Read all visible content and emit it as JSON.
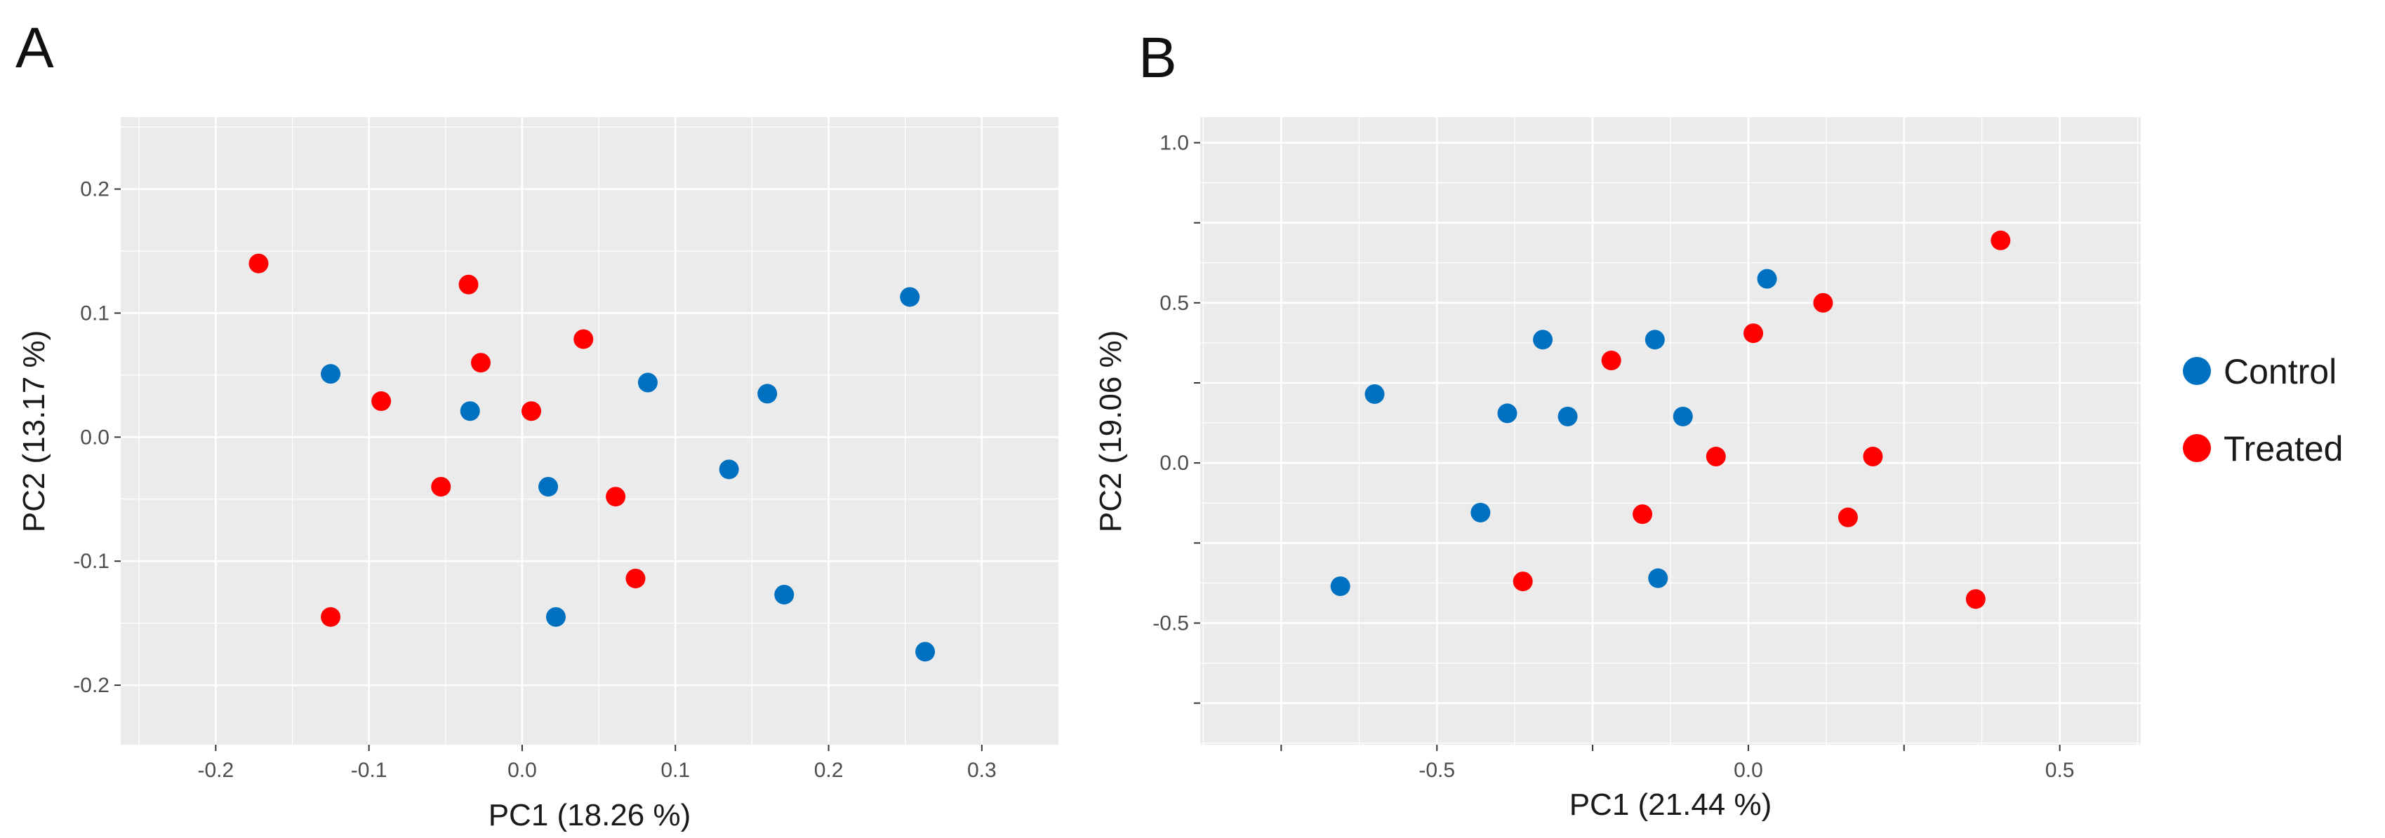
{
  "colors": {
    "panel_bg": "#EBEBEB",
    "grid": "#FFFFFF",
    "tick": "#333333",
    "control": "#0070C0",
    "treated": "#FF0000"
  },
  "legend": {
    "position": "right",
    "entries": [
      {
        "name": "Control",
        "color": "#0070C0"
      },
      {
        "name": "Treated",
        "color": "#FF0000"
      }
    ]
  },
  "chart_data": [
    {
      "panel_label": "A",
      "type": "scatter",
      "xlabel": "PC1 (18.26 %)",
      "ylabel": "PC2 (13.17 %)",
      "xlim": [
        -0.262,
        0.35
      ],
      "ylim": [
        -0.248,
        0.258
      ],
      "xticks": [
        -0.2,
        -0.1,
        0.0,
        0.1,
        0.2,
        0.3
      ],
      "xtick_labels": [
        "-0.2",
        "-0.1",
        "0.0",
        "0.1",
        "0.2",
        "0.3"
      ],
      "yticks": [
        -0.2,
        -0.1,
        0.0,
        0.1,
        0.2
      ],
      "ytick_labels": [
        "-0.2",
        "-0.1",
        "0.0",
        "0.1",
        "0.2"
      ],
      "xminor": [
        -0.25,
        -0.15,
        -0.05,
        0.05,
        0.15,
        0.25,
        0.35
      ],
      "yminor": [
        -0.15,
        -0.05,
        0.05,
        0.15,
        0.25
      ],
      "grid": true,
      "series": [
        {
          "name": "Control",
          "color": "#0070C0",
          "points": [
            [
              -0.125,
              0.051
            ],
            [
              -0.034,
              0.021
            ],
            [
              0.017,
              -0.04
            ],
            [
              0.022,
              -0.145
            ],
            [
              0.082,
              0.044
            ],
            [
              0.135,
              -0.026
            ],
            [
              0.16,
              0.035
            ],
            [
              0.171,
              -0.127
            ],
            [
              0.253,
              0.113
            ],
            [
              0.263,
              -0.173
            ]
          ]
        },
        {
          "name": "Treated",
          "color": "#FF0000",
          "points": [
            [
              -0.172,
              0.14
            ],
            [
              -0.125,
              -0.145
            ],
            [
              -0.092,
              0.029
            ],
            [
              -0.053,
              -0.04
            ],
            [
              -0.035,
              0.123
            ],
            [
              -0.027,
              0.06
            ],
            [
              0.006,
              0.021
            ],
            [
              0.04,
              0.079
            ],
            [
              0.061,
              -0.048
            ],
            [
              0.074,
              -0.114
            ]
          ]
        }
      ]
    },
    {
      "panel_label": "B",
      "type": "scatter",
      "xlabel": "PC1 (21.44 %)",
      "ylabel": "PC2 (19.06 %)",
      "xlim": [
        -0.88,
        0.63
      ],
      "ylim": [
        -0.88,
        1.08
      ],
      "xticks": [
        -0.75,
        -0.5,
        -0.25,
        0.0,
        0.25,
        0.5
      ],
      "xtick_labels": [
        "",
        "-0.5",
        "",
        "0.0",
        "",
        "0.5"
      ],
      "yticks": [
        -0.75,
        -0.5,
        -0.25,
        0.0,
        0.25,
        0.5,
        0.75,
        1.0
      ],
      "ytick_labels": [
        "",
        "-0.5",
        "",
        "0.0",
        "",
        "0.5",
        "",
        "1.0"
      ],
      "xminor": [
        -0.875,
        -0.625,
        -0.375,
        -0.125,
        0.125,
        0.375,
        0.625
      ],
      "yminor": [
        -0.875,
        -0.625,
        -0.375,
        -0.125,
        0.125,
        0.375,
        0.625,
        0.875
      ],
      "grid": true,
      "series": [
        {
          "name": "Control",
          "color": "#0070C0",
          "points": [
            [
              -0.655,
              -0.385
            ],
            [
              -0.6,
              0.215
            ],
            [
              -0.43,
              -0.155
            ],
            [
              -0.387,
              0.155
            ],
            [
              -0.33,
              0.385
            ],
            [
              -0.29,
              0.145
            ],
            [
              -0.15,
              0.385
            ],
            [
              -0.145,
              -0.36
            ],
            [
              -0.105,
              0.145
            ],
            [
              0.03,
              0.575
            ]
          ]
        },
        {
          "name": "Treated",
          "color": "#FF0000",
          "points": [
            [
              -0.362,
              -0.37
            ],
            [
              -0.22,
              0.32
            ],
            [
              -0.17,
              -0.16
            ],
            [
              -0.052,
              0.02
            ],
            [
              0.008,
              0.405
            ],
            [
              0.12,
              0.5
            ],
            [
              0.16,
              -0.17
            ],
            [
              0.2,
              0.02
            ],
            [
              0.365,
              -0.425
            ],
            [
              0.405,
              0.695
            ]
          ]
        }
      ]
    }
  ]
}
